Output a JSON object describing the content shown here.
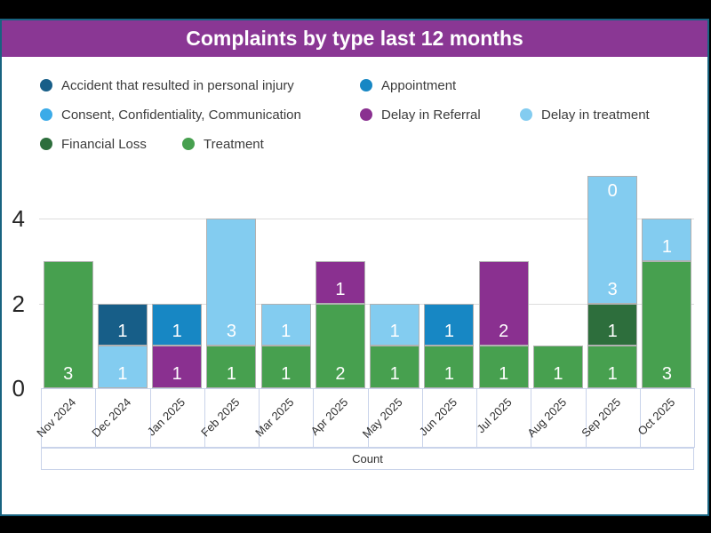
{
  "header": {
    "title": "Complaints by type last 12 months",
    "bg_color": "#8a3794",
    "border_color": "#186380"
  },
  "legend": {
    "rows": [
      {
        "items": [
          {
            "label": "Accident that resulted in personal injury"
          },
          {
            "label": "Appointment"
          }
        ]
      },
      {
        "items": [
          {
            "label": "Consent, Confidentiality, Communication"
          },
          {
            "label": "Delay in Referral"
          },
          {
            "label": "Delay in treatment"
          }
        ]
      },
      {
        "items": [
          {
            "label": "Financial Loss"
          },
          {
            "label": "Treatment"
          }
        ]
      }
    ]
  },
  "axis": {
    "count_label": "Count"
  },
  "chart_data": {
    "type": "bar",
    "stacked": true,
    "title": "Complaints by type last 12 months",
    "xlabel": "Count",
    "ylabel": "",
    "ylim": [
      0,
      5
    ],
    "yticks": [
      0,
      2,
      4
    ],
    "grid": true,
    "legend_position": "top",
    "categories": [
      "Nov 2024",
      "Dec 2024",
      "Jan 2025",
      "Feb 2025",
      "Mar 2025",
      "Apr 2025",
      "May 2025",
      "Jun 2025",
      "Jul 2025",
      "Aug 2025",
      "Sep 2025",
      "Oct 2025"
    ],
    "colors": {
      "Accident that resulted in personal injury": "#175e88",
      "Appointment": "#1787c4",
      "Consent, Confidentiality, Communication": "#3babe8",
      "Delay in Referral": "#8a3090",
      "Delay in treatment": "#83ccf0",
      "Financial Loss": "#2d6e3c",
      "Treatment": "#47a04f"
    },
    "bars": [
      {
        "category": "Nov 2024",
        "segments": [
          {
            "type": "Treatment",
            "value": 3
          }
        ]
      },
      {
        "category": "Dec 2024",
        "segments": [
          {
            "type": "Delay in treatment",
            "value": 1
          },
          {
            "type": "Accident that resulted in personal injury",
            "value": 1
          }
        ]
      },
      {
        "category": "Jan 2025",
        "segments": [
          {
            "type": "Delay in Referral",
            "value": 1
          },
          {
            "type": "Appointment",
            "value": 1
          }
        ]
      },
      {
        "category": "Feb 2025",
        "segments": [
          {
            "type": "Treatment",
            "value": 1
          },
          {
            "type": "Delay in treatment",
            "value": 3
          }
        ]
      },
      {
        "category": "Mar 2025",
        "segments": [
          {
            "type": "Treatment",
            "value": 1
          },
          {
            "type": "Delay in treatment",
            "value": 1
          }
        ]
      },
      {
        "category": "Apr 2025",
        "segments": [
          {
            "type": "Treatment",
            "value": 2
          },
          {
            "type": "Delay in Referral",
            "value": 1
          }
        ]
      },
      {
        "category": "May 2025",
        "segments": [
          {
            "type": "Treatment",
            "value": 1
          },
          {
            "type": "Delay in treatment",
            "value": 1
          }
        ]
      },
      {
        "category": "Jun 2025",
        "segments": [
          {
            "type": "Treatment",
            "value": 1
          },
          {
            "type": "Appointment",
            "value": 1
          }
        ]
      },
      {
        "category": "Jul 2025",
        "segments": [
          {
            "type": "Treatment",
            "value": 1
          },
          {
            "type": "Delay in Referral",
            "value": 2
          }
        ]
      },
      {
        "category": "Aug 2025",
        "segments": [
          {
            "type": "Treatment",
            "value": 1
          }
        ]
      },
      {
        "category": "Sep 2025",
        "segments": [
          {
            "type": "Treatment",
            "value": 1
          },
          {
            "type": "Financial Loss",
            "value": 1
          },
          {
            "type": "Delay in treatment",
            "value": 3
          },
          {
            "type": "Consent, Confidentiality, Communication",
            "value": 0
          }
        ]
      },
      {
        "category": "Oct 2025",
        "segments": [
          {
            "type": "Treatment",
            "value": 3
          },
          {
            "type": "Delay in treatment",
            "value": 1
          }
        ]
      }
    ]
  }
}
